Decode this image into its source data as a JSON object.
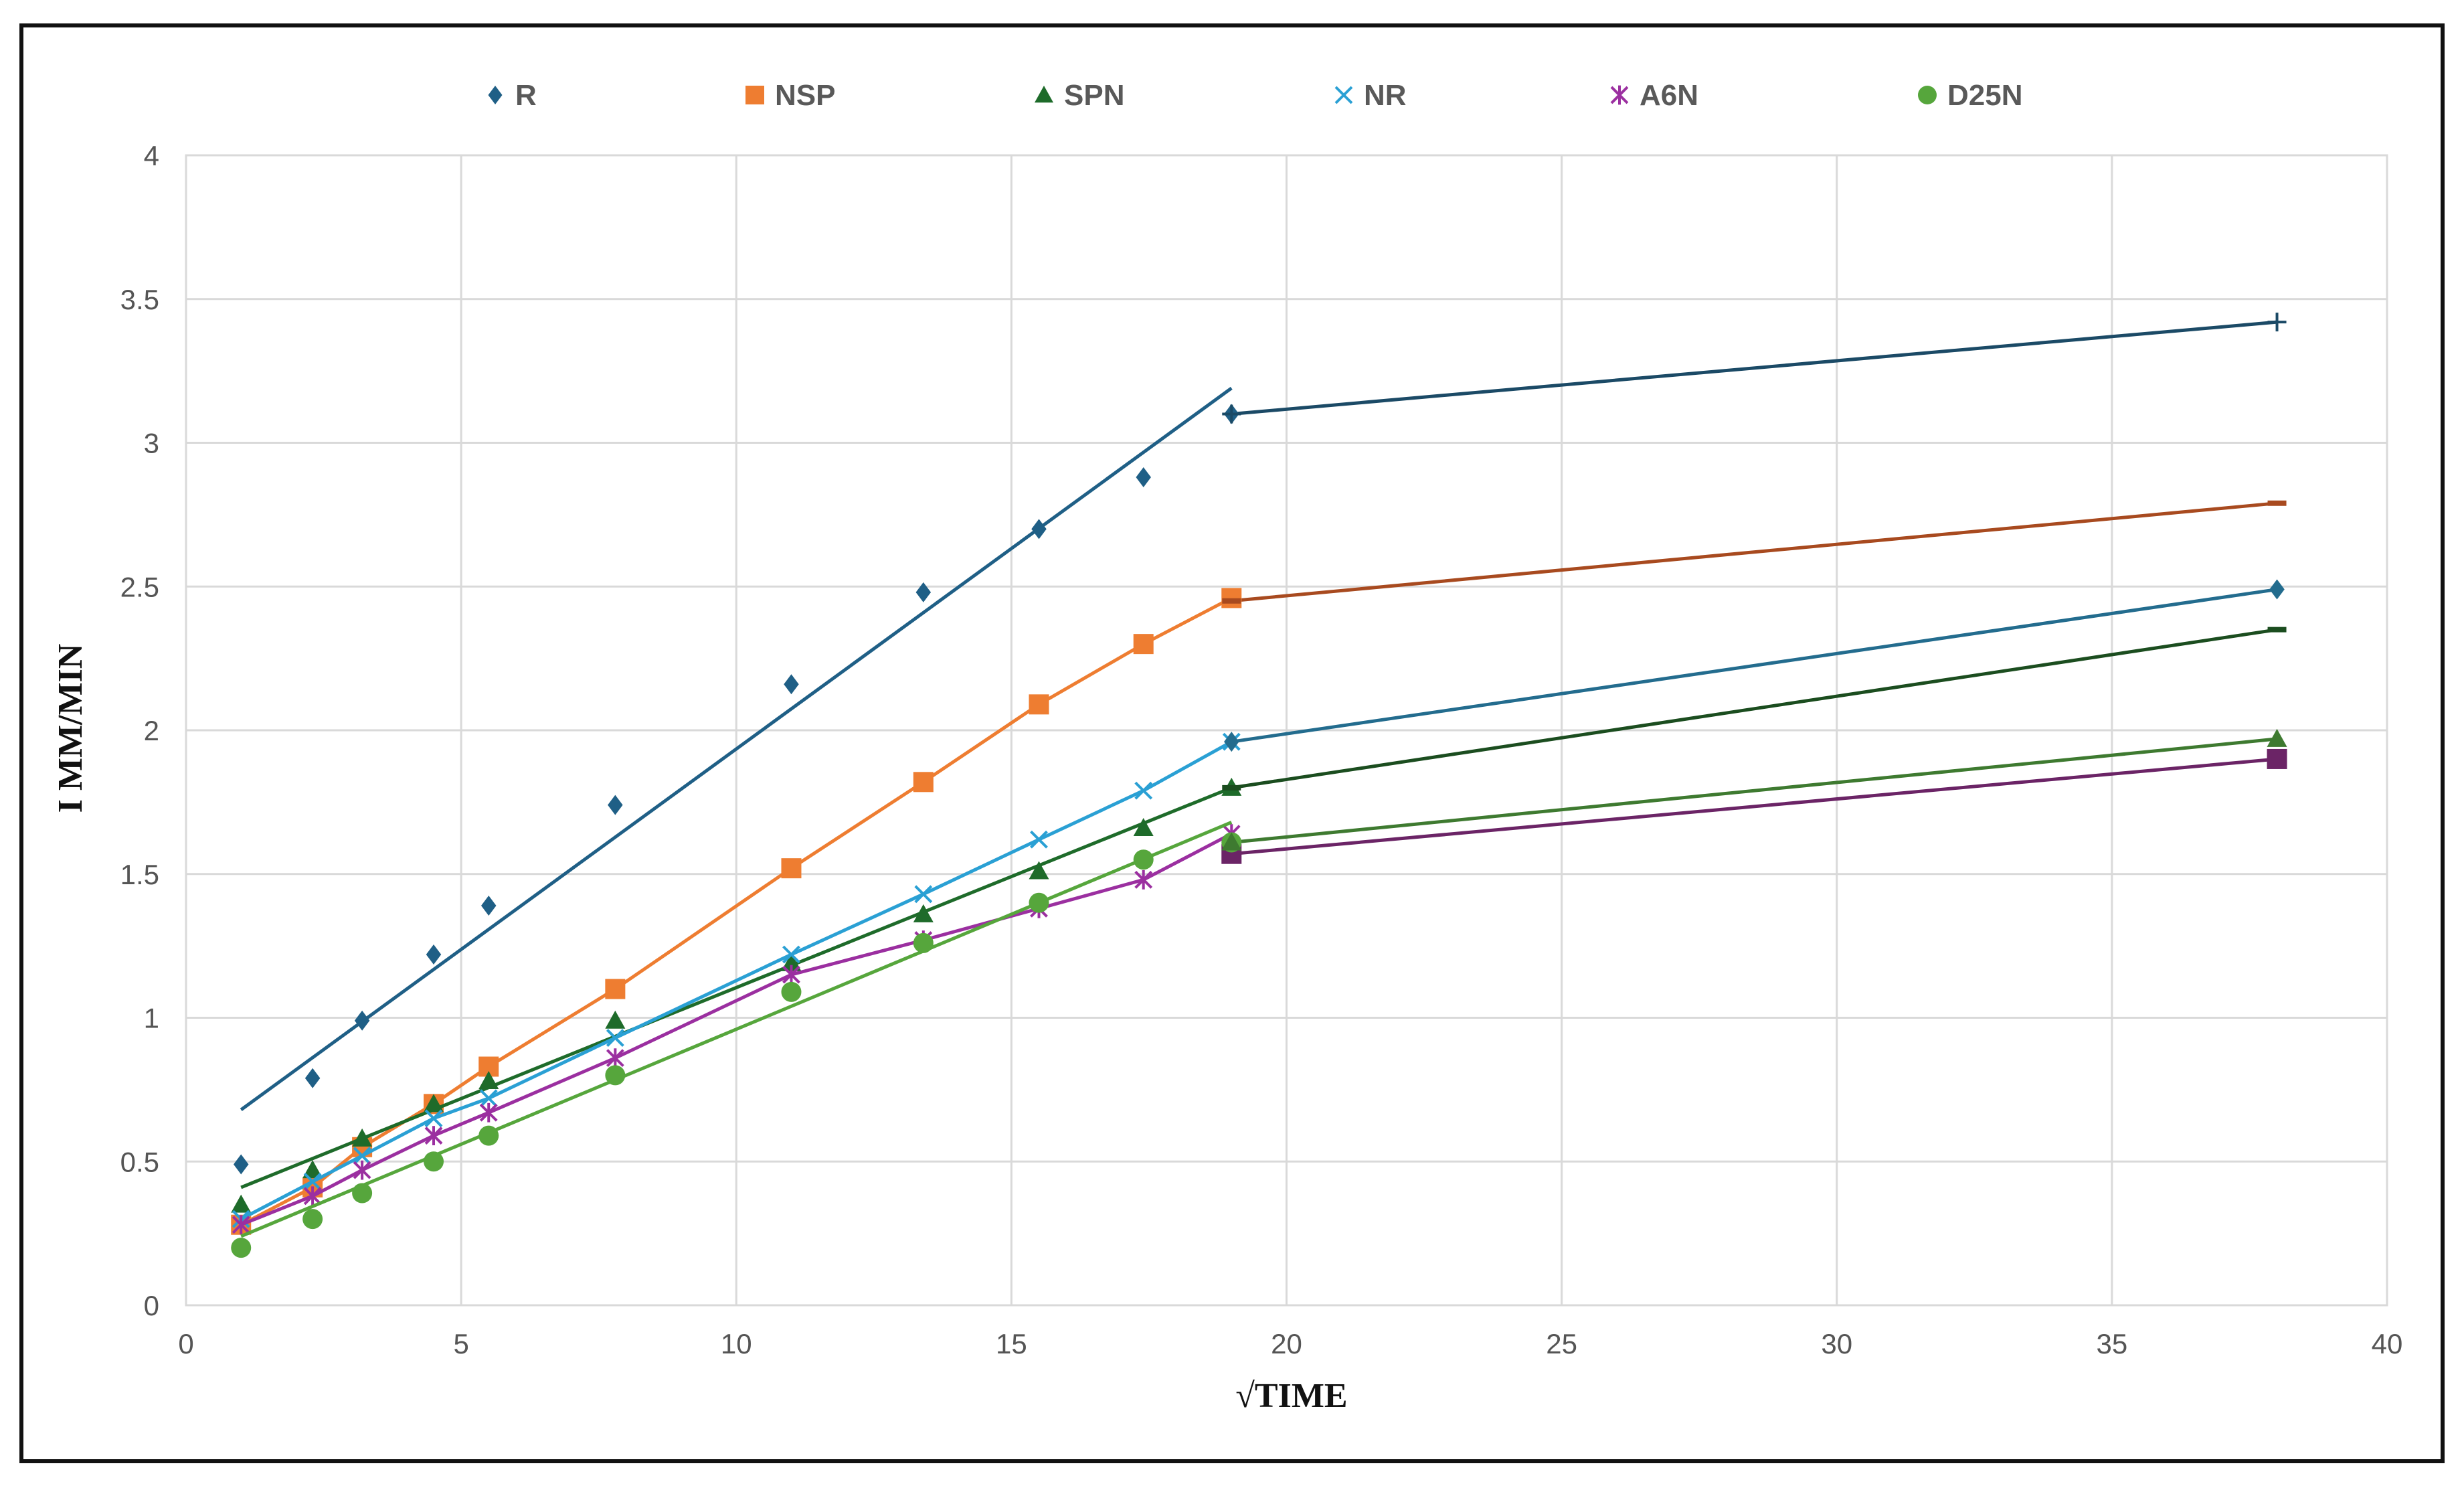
{
  "chart_data": {
    "type": "line",
    "title": "",
    "xlabel": "√TIME",
    "ylabel": "I MM/MIN",
    "xlim": [
      0,
      40
    ],
    "ylim": [
      0,
      4
    ],
    "x_ticks": [
      0,
      5,
      10,
      15,
      20,
      25,
      30,
      35,
      40
    ],
    "y_ticks": [
      0,
      0.5,
      1,
      1.5,
      2,
      2.5,
      3,
      3.5,
      4
    ],
    "grid": true,
    "legend_position": "top",
    "series": [
      {
        "name": "R",
        "marker": "diamond",
        "color": "#1f5f86",
        "points": [
          [
            1,
            0.49
          ],
          [
            2.3,
            0.79
          ],
          [
            3.2,
            0.99
          ],
          [
            4.5,
            1.22
          ],
          [
            5.5,
            1.39
          ],
          [
            7.8,
            1.74
          ],
          [
            11,
            2.16
          ],
          [
            13.4,
            2.48
          ],
          [
            15.5,
            2.7
          ],
          [
            17.4,
            2.88
          ],
          [
            19,
            3.1
          ]
        ],
        "fit_line": [
          [
            1,
            0.68
          ],
          [
            19,
            3.19
          ]
        ],
        "tail": [
          [
            19,
            3.1
          ],
          [
            38,
            3.42
          ]
        ],
        "tail_color": "#1b4a66",
        "tail_marker": "plus"
      },
      {
        "name": "NSP",
        "marker": "square",
        "color": "#ee7d31",
        "points": [
          [
            1,
            0.28
          ],
          [
            2.3,
            0.41
          ],
          [
            3.2,
            0.55
          ],
          [
            4.5,
            0.7
          ],
          [
            5.5,
            0.83
          ],
          [
            7.8,
            1.1
          ],
          [
            11,
            1.52
          ],
          [
            13.4,
            1.82
          ],
          [
            15.5,
            2.09
          ],
          [
            17.4,
            2.3
          ],
          [
            19,
            2.46
          ]
        ],
        "fit_line": null,
        "tail": [
          [
            19,
            2.45
          ],
          [
            38,
            2.79
          ]
        ],
        "tail_color": "#a84a1f",
        "tail_marker": "dash"
      },
      {
        "name": "SPN",
        "marker": "triangle",
        "color": "#1e6b2a",
        "points": [
          [
            1,
            0.35
          ],
          [
            2.3,
            0.47
          ],
          [
            3.2,
            0.58
          ],
          [
            4.5,
            0.7
          ],
          [
            5.5,
            0.78
          ],
          [
            7.8,
            0.99
          ],
          [
            11,
            1.19
          ],
          [
            13.4,
            1.36
          ],
          [
            15.5,
            1.51
          ],
          [
            17.4,
            1.66
          ],
          [
            19,
            1.8
          ]
        ],
        "fit_line": [
          [
            1,
            0.41
          ],
          [
            19,
            1.8
          ]
        ],
        "tail": [
          [
            19,
            1.8
          ],
          [
            38,
            2.35
          ]
        ],
        "tail_color": "#1b4d1f",
        "tail_marker": "dash"
      },
      {
        "name": "NR",
        "marker": "x",
        "color": "#2aa0d4",
        "points": [
          [
            1,
            0.3
          ],
          [
            2.3,
            0.43
          ],
          [
            3.2,
            0.52
          ],
          [
            4.5,
            0.65
          ],
          [
            5.5,
            0.72
          ],
          [
            7.8,
            0.93
          ],
          [
            11,
            1.22
          ],
          [
            13.4,
            1.43
          ],
          [
            15.5,
            1.62
          ],
          [
            17.4,
            1.79
          ],
          [
            19,
            1.96
          ]
        ],
        "fit_line": null,
        "tail": [
          [
            19,
            1.96
          ],
          [
            38,
            2.49
          ]
        ],
        "tail_color": "#236c8e",
        "tail_marker": "diamond"
      },
      {
        "name": "A6N",
        "marker": "star",
        "color": "#9b2fa0",
        "points": [
          [
            1,
            0.28
          ],
          [
            2.3,
            0.38
          ],
          [
            3.2,
            0.47
          ],
          [
            4.5,
            0.59
          ],
          [
            5.5,
            0.67
          ],
          [
            7.8,
            0.86
          ],
          [
            11,
            1.15
          ],
          [
            13.4,
            1.27
          ],
          [
            15.5,
            1.38
          ],
          [
            17.4,
            1.48
          ],
          [
            19,
            1.64
          ]
        ],
        "fit_line": null,
        "tail": [
          [
            19,
            1.57
          ],
          [
            38,
            1.9
          ]
        ],
        "tail_color": "#6b2466",
        "tail_marker": "square"
      },
      {
        "name": "D25N",
        "marker": "circle",
        "color": "#56a63c",
        "points": [
          [
            1,
            0.2
          ],
          [
            2.3,
            0.3
          ],
          [
            3.2,
            0.39
          ],
          [
            4.5,
            0.5
          ],
          [
            5.5,
            0.59
          ],
          [
            7.8,
            0.8
          ],
          [
            11,
            1.09
          ],
          [
            13.4,
            1.26
          ],
          [
            15.5,
            1.4
          ],
          [
            17.4,
            1.55
          ],
          [
            19,
            1.61
          ]
        ],
        "fit_line": [
          [
            1,
            0.24
          ],
          [
            19,
            1.68
          ]
        ],
        "tail": [
          [
            19,
            1.61
          ],
          [
            38,
            1.97
          ]
        ],
        "tail_color": "#3e7a30",
        "tail_marker": "triangle"
      }
    ]
  }
}
